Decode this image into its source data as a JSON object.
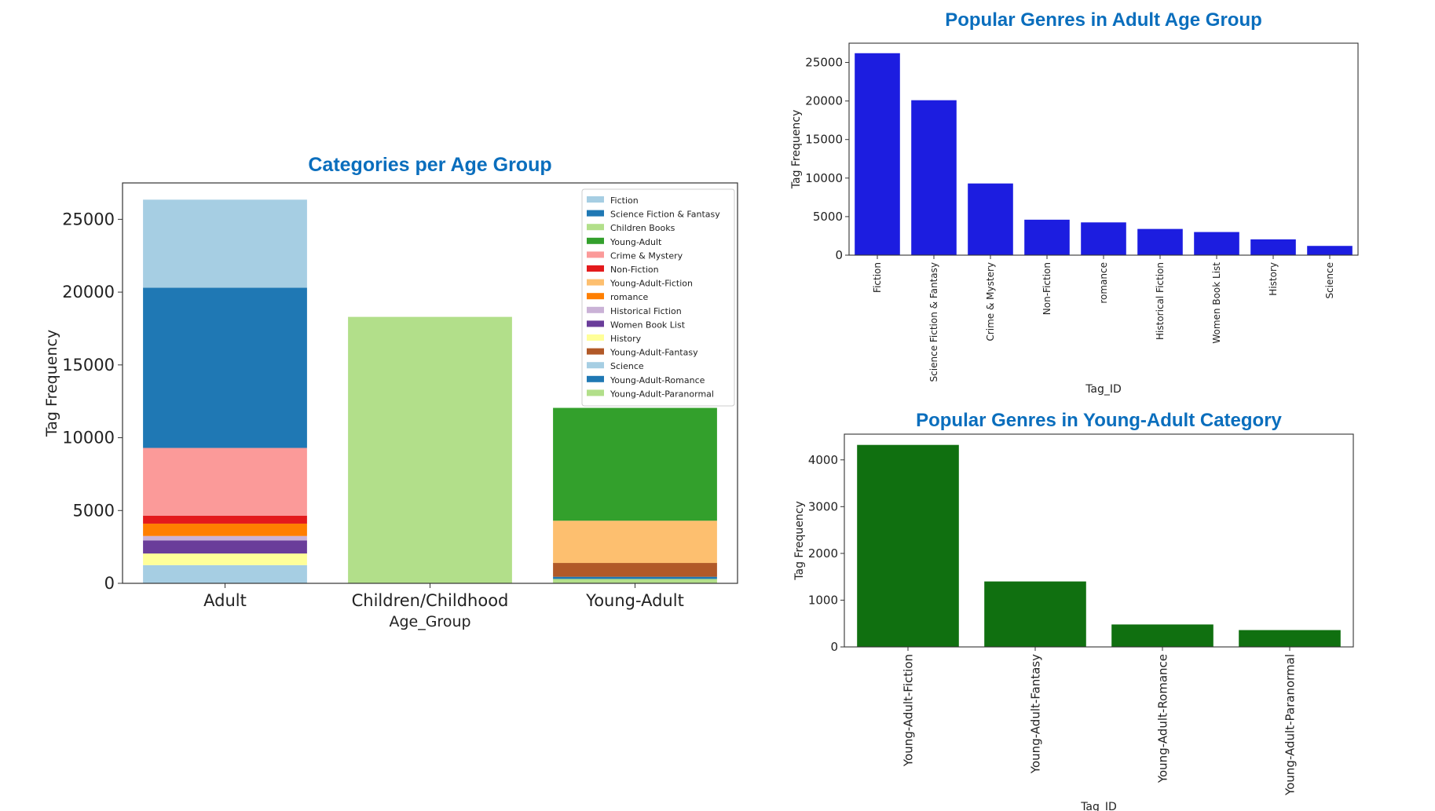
{
  "chart_data": [
    {
      "id": "stacked",
      "type": "bar",
      "stacked": true,
      "title": "Categories per Age Group",
      "xlabel": "Age_Group",
      "ylabel": "Tag Frequency",
      "categories": [
        "Adult",
        "Children/Childhood",
        "Young-Adult"
      ],
      "ylim": [
        0,
        27500
      ],
      "yticks": [
        0,
        5000,
        10000,
        15000,
        20000,
        25000
      ],
      "legend_position": "top-right",
      "series": [
        {
          "name": "Fiction",
          "color": "#a6cee3",
          "values": [
            6050,
            0,
            0
          ]
        },
        {
          "name": "Science Fiction & Fantasy",
          "color": "#1f78b4",
          "values": [
            11000,
            0,
            0
          ]
        },
        {
          "name": "Children Books",
          "color": "#b2df8a",
          "values": [
            0,
            18300,
            0
          ]
        },
        {
          "name": "Young-Adult",
          "color": "#33a02c",
          "values": [
            0,
            0,
            7750
          ]
        },
        {
          "name": "Crime & Mystery",
          "color": "#fb9a99",
          "values": [
            4650,
            0,
            0
          ]
        },
        {
          "name": "Non-Fiction",
          "color": "#e31a1c",
          "values": [
            550,
            0,
            0
          ]
        },
        {
          "name": "Young-Adult-Fiction",
          "color": "#fdbf6f",
          "values": [
            0,
            0,
            2900
          ]
        },
        {
          "name": "romance",
          "color": "#ff7f00",
          "values": [
            850,
            0,
            0
          ]
        },
        {
          "name": "Historical Fiction",
          "color": "#cab2d6",
          "values": [
            300,
            0,
            0
          ]
        },
        {
          "name": "Women Book List",
          "color": "#6a3d9a",
          "values": [
            900,
            0,
            0
          ]
        },
        {
          "name": "History",
          "color": "#ffff99",
          "values": [
            800,
            0,
            0
          ]
        },
        {
          "name": "Young-Adult-Fantasy",
          "color": "#b15928",
          "values": [
            0,
            0,
            950
          ]
        },
        {
          "name": "Science",
          "color": "#a6cee3",
          "values": [
            1250,
            0,
            0
          ]
        },
        {
          "name": "Young-Adult-Romance",
          "color": "#1f78b4",
          "values": [
            0,
            0,
            150
          ]
        },
        {
          "name": "Young-Adult-Paranormal",
          "color": "#b2df8a",
          "values": [
            0,
            0,
            300
          ]
        }
      ]
    },
    {
      "id": "adult",
      "type": "bar",
      "title": "Popular Genres in Adult Age Group",
      "xlabel": "Tag_ID",
      "ylabel": "Tag Frequency",
      "color": "#1c1de0",
      "categories": [
        "Fiction",
        "Science Fiction & Fantasy",
        "Crime & Mystery",
        "Non-Fiction",
        "romance",
        "Historical Fiction",
        "Women Book List",
        "History",
        "Science"
      ],
      "values": [
        26200,
        20100,
        9300,
        4600,
        4250,
        3400,
        3000,
        2050,
        1200
      ],
      "ylim": [
        0,
        27500
      ],
      "yticks": [
        0,
        5000,
        10000,
        15000,
        20000,
        25000
      ]
    },
    {
      "id": "ya",
      "type": "bar",
      "title": "Popular Genres in Young-Adult Category",
      "xlabel": "Tag_ID",
      "ylabel": "Tag Frequency",
      "color": "#107010",
      "categories": [
        "Young-Adult-Fiction",
        "Young-Adult-Fantasy",
        "Young-Adult-Romance",
        "Young-Adult-Paranormal"
      ],
      "values": [
        4320,
        1400,
        480,
        360
      ],
      "ylim": [
        0,
        4550
      ],
      "yticks": [
        0,
        1000,
        2000,
        3000,
        4000
      ]
    }
  ]
}
